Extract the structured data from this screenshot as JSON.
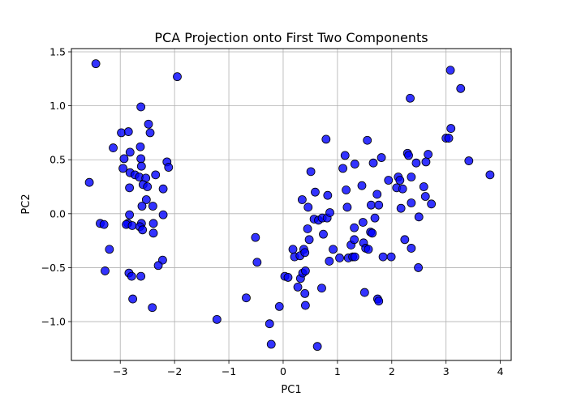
{
  "chart_data": {
    "type": "scatter",
    "title": "PCA Projection onto First Two Components",
    "xlabel": "PC1",
    "ylabel": "PC2",
    "xlim": [
      -3.9,
      4.2
    ],
    "ylim": [
      -1.36,
      1.53
    ],
    "xticks": [
      -3,
      -2,
      -1,
      0,
      1,
      2,
      3,
      4
    ],
    "yticks": [
      -1.0,
      -0.5,
      0.0,
      0.5,
      1.0,
      1.5
    ],
    "xtick_labels": [
      "−3",
      "−2",
      "−1",
      "0",
      "1",
      "2",
      "3",
      "4"
    ],
    "ytick_labels": [
      "−1.0",
      "−0.5",
      "0.0",
      "0.5",
      "1.0",
      "1.5"
    ],
    "grid": true,
    "marker_color": "#0000ff",
    "marker_edge_color": "#000000",
    "series": [
      {
        "points": [
          [
            -3.45,
            1.39
          ],
          [
            -1.95,
            1.27
          ],
          [
            -2.62,
            0.99
          ],
          [
            -2.48,
            0.83
          ],
          [
            -2.98,
            0.75
          ],
          [
            -2.85,
            0.76
          ],
          [
            -2.45,
            0.75
          ],
          [
            -2.63,
            0.62
          ],
          [
            -3.13,
            0.61
          ],
          [
            -2.82,
            0.57
          ],
          [
            -2.93,
            0.51
          ],
          [
            -2.62,
            0.51
          ],
          [
            -2.14,
            0.48
          ],
          [
            -2.61,
            0.44
          ],
          [
            -2.95,
            0.42
          ],
          [
            -2.11,
            0.43
          ],
          [
            -2.82,
            0.38
          ],
          [
            -2.73,
            0.36
          ],
          [
            -2.35,
            0.36
          ],
          [
            -2.65,
            0.34
          ],
          [
            -2.53,
            0.33
          ],
          [
            -3.57,
            0.29
          ],
          [
            -2.58,
            0.27
          ],
          [
            -2.5,
            0.25
          ],
          [
            -2.83,
            0.24
          ],
          [
            -2.21,
            0.23
          ],
          [
            -2.52,
            0.13
          ],
          [
            -2.4,
            0.07
          ],
          [
            -2.6,
            0.07
          ],
          [
            -2.83,
            -0.01
          ],
          [
            -2.21,
            -0.01
          ],
          [
            -3.37,
            -0.09
          ],
          [
            -3.3,
            -0.1
          ],
          [
            -2.86,
            -0.09
          ],
          [
            -2.61,
            -0.09
          ],
          [
            -2.89,
            -0.1
          ],
          [
            -2.78,
            -0.11
          ],
          [
            -2.39,
            -0.09
          ],
          [
            -2.64,
            -0.12
          ],
          [
            -2.59,
            -0.15
          ],
          [
            -2.39,
            -0.18
          ],
          [
            -3.2,
            -0.33
          ],
          [
            -2.22,
            -0.43
          ],
          [
            -2.3,
            -0.48
          ],
          [
            -3.28,
            -0.53
          ],
          [
            -2.84,
            -0.55
          ],
          [
            -2.79,
            -0.58
          ],
          [
            -2.62,
            -0.58
          ],
          [
            -2.77,
            -0.79
          ],
          [
            -2.41,
            -0.87
          ],
          [
            -1.22,
            -0.98
          ],
          [
            -0.68,
            -0.78
          ],
          [
            -0.51,
            -0.22
          ],
          [
            -0.48,
            -0.45
          ],
          [
            -0.25,
            -1.02
          ],
          [
            -0.22,
            -1.21
          ],
          [
            -0.07,
            -0.86
          ],
          [
            0.03,
            -0.58
          ],
          [
            0.09,
            -0.59
          ],
          [
            0.18,
            -0.33
          ],
          [
            0.21,
            -0.4
          ],
          [
            0.27,
            -0.68
          ],
          [
            0.31,
            -0.39
          ],
          [
            0.32,
            -0.6
          ],
          [
            0.35,
            0.13
          ],
          [
            0.36,
            -0.55
          ],
          [
            0.38,
            -0.33
          ],
          [
            0.4,
            -0.36
          ],
          [
            0.4,
            -0.74
          ],
          [
            0.41,
            -0.53
          ],
          [
            0.41,
            -0.85
          ],
          [
            0.45,
            -0.14
          ],
          [
            0.46,
            0.06
          ],
          [
            0.48,
            -0.24
          ],
          [
            0.51,
            0.39
          ],
          [
            0.57,
            -0.05
          ],
          [
            0.59,
            0.2
          ],
          [
            0.63,
            -1.23
          ],
          [
            0.65,
            -0.06
          ],
          [
            0.71,
            -0.69
          ],
          [
            0.72,
            -0.04
          ],
          [
            0.74,
            -0.19
          ],
          [
            0.79,
            0.69
          ],
          [
            0.81,
            -0.04
          ],
          [
            0.82,
            0.17
          ],
          [
            0.85,
            -0.44
          ],
          [
            0.86,
            0.01
          ],
          [
            0.92,
            -0.33
          ],
          [
            1.04,
            -0.41
          ],
          [
            1.1,
            0.42
          ],
          [
            1.14,
            0.54
          ],
          [
            1.16,
            0.22
          ],
          [
            1.18,
            0.06
          ],
          [
            1.2,
            -0.41
          ],
          [
            1.25,
            -0.29
          ],
          [
            1.28,
            -0.4
          ],
          [
            1.31,
            -0.13
          ],
          [
            1.31,
            -0.24
          ],
          [
            1.32,
            -0.4
          ],
          [
            1.32,
            0.46
          ],
          [
            1.45,
            0.26
          ],
          [
            1.47,
            -0.08
          ],
          [
            1.48,
            -0.27
          ],
          [
            1.5,
            -0.73
          ],
          [
            1.52,
            -0.32
          ],
          [
            1.55,
            0.68
          ],
          [
            1.57,
            -0.33
          ],
          [
            1.61,
            -0.17
          ],
          [
            1.62,
            0.08
          ],
          [
            1.64,
            -0.18
          ],
          [
            1.66,
            0.47
          ],
          [
            1.69,
            -0.04
          ],
          [
            1.73,
            0.18
          ],
          [
            1.74,
            -0.79
          ],
          [
            1.76,
            0.08
          ],
          [
            1.76,
            -0.81
          ],
          [
            1.81,
            0.52
          ],
          [
            1.84,
            -0.4
          ],
          [
            1.94,
            0.31
          ],
          [
            1.99,
            -0.4
          ],
          [
            2.09,
            0.24
          ],
          [
            2.12,
            0.34
          ],
          [
            2.15,
            0.31
          ],
          [
            2.17,
            0.05
          ],
          [
            2.2,
            0.23
          ],
          [
            2.24,
            -0.24
          ],
          [
            2.29,
            0.56
          ],
          [
            2.31,
            0.54
          ],
          [
            2.34,
            1.07
          ],
          [
            2.36,
            0.34
          ],
          [
            2.36,
            0.1
          ],
          [
            2.36,
            -0.32
          ],
          [
            2.45,
            0.47
          ],
          [
            2.49,
            -0.5
          ],
          [
            2.5,
            -0.03
          ],
          [
            2.59,
            0.25
          ],
          [
            2.62,
            0.16
          ],
          [
            2.63,
            0.48
          ],
          [
            2.67,
            0.55
          ],
          [
            2.73,
            0.09
          ],
          [
            3.0,
            0.7
          ],
          [
            3.05,
            0.7
          ],
          [
            3.08,
            1.33
          ],
          [
            3.09,
            0.79
          ],
          [
            3.27,
            1.16
          ],
          [
            3.42,
            0.49
          ],
          [
            3.81,
            0.36
          ]
        ]
      }
    ]
  }
}
